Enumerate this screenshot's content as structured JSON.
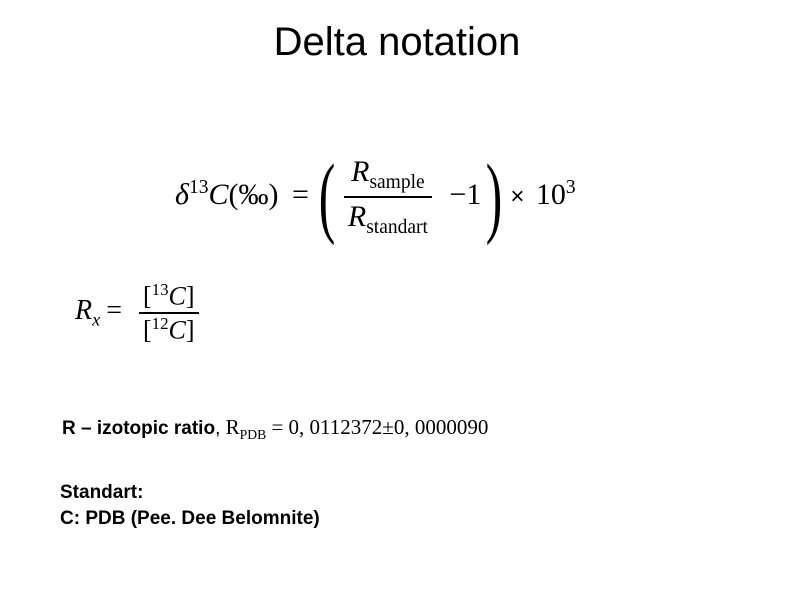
{
  "title": "Delta notation",
  "mainEquation": {
    "delta": "δ",
    "sup13": "13",
    "C": "C",
    "permil": "(‰)",
    "equals": "=",
    "R": "R",
    "sub_sample": "sample",
    "sub_standart": "standart",
    "minus1": "−1",
    "times": "×",
    "ten": "10",
    "exp3": "3"
  },
  "rxEquation": {
    "R": "R",
    "x": "x",
    "equals": "=",
    "open": "[",
    "close": "]",
    "sup13": "13",
    "sup12": "12",
    "C": "C"
  },
  "ratioLine": {
    "prefix": "R – izotopic ratio",
    "sep": ",  ",
    "Rpdb_R": "R",
    "Rpdb_sub": "PDB",
    "eq": " = ",
    "val": "0, 0112372",
    "pm": "±",
    "err": "0, 0000090"
  },
  "standart": {
    "l1": "Standart:",
    "l2": "C: PDB (Pee. Dee Belomnite)"
  }
}
